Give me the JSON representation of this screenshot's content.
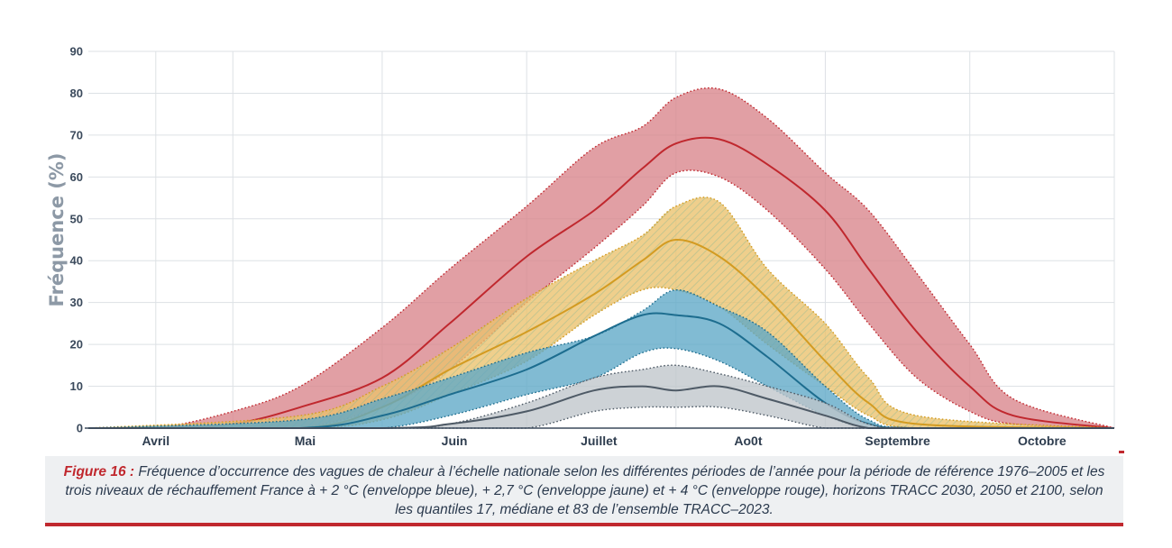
{
  "chart_data": {
    "type": "area",
    "ylabel": "Fréquence (%)",
    "ylim": [
      0,
      90
    ],
    "yticks": [
      0,
      10,
      20,
      30,
      40,
      50,
      60,
      70,
      80,
      90
    ],
    "x_axis": "day of year (April 1 to October 31)",
    "xlim": [
      "04-01",
      "10-31"
    ],
    "month_gridlines": [
      "04-15",
      "05-01",
      "06-01",
      "07-01",
      "08-01",
      "09-01",
      "10-01"
    ],
    "months": [
      {
        "label": "Avril",
        "center": "04-15"
      },
      {
        "label": "Mai",
        "center": "05-16"
      },
      {
        "label": "Juin",
        "center": "06-16"
      },
      {
        "label": "Juillet",
        "center": "07-16"
      },
      {
        "label": "Ao0t",
        "center": "08-16"
      },
      {
        "label": "Septembre",
        "center": "09-16"
      },
      {
        "label": "Octobre",
        "center": "10-16"
      }
    ],
    "grid": true,
    "series": [
      {
        "color": "#bfc5cb",
        "line_color": "#4e5a66",
        "fill_pattern": "solid",
        "x": [
          "04-01",
          "06-01",
          "06-15",
          "07-01",
          "07-15",
          "07-25",
          "08-01",
          "08-10",
          "08-20",
          "09-01",
          "09-10",
          "09-20",
          "10-31"
        ],
        "q17": [
          0,
          0,
          0,
          0,
          4,
          5,
          5,
          5,
          3,
          0,
          0,
          0,
          0
        ],
        "median": [
          0,
          0,
          1,
          4,
          9,
          10,
          9,
          10,
          7,
          3,
          0,
          0,
          0
        ],
        "q83": [
          0,
          0,
          1,
          6,
          12,
          14,
          15,
          13,
          10,
          6,
          1,
          0,
          0
        ]
      },
      {
        "color": "#5ea8c6",
        "line_color": "#1d6d8f",
        "fill_pattern": "solid",
        "x": [
          "04-01",
          "05-15",
          "06-01",
          "06-15",
          "07-01",
          "07-15",
          "07-25",
          "08-01",
          "08-10",
          "08-20",
          "09-01",
          "09-10",
          "09-20",
          "10-31"
        ],
        "q17": [
          0,
          0,
          0,
          3,
          8,
          12,
          18,
          19,
          16,
          10,
          3,
          0,
          0,
          0
        ],
        "median": [
          0,
          0,
          3,
          8,
          14,
          22,
          27,
          27,
          25,
          17,
          6,
          1,
          0,
          0
        ],
        "q83": [
          0,
          2,
          7,
          12,
          18,
          22,
          28,
          33,
          29,
          23,
          10,
          2,
          0,
          0
        ]
      },
      {
        "color": "#ebc26b",
        "line_color": "#d39b21",
        "fill_pattern": "solid",
        "x": [
          "04-01",
          "05-15",
          "06-01",
          "06-15",
          "07-01",
          "07-15",
          "07-25",
          "08-01",
          "08-10",
          "08-20",
          "09-01",
          "09-10",
          "09-20",
          "10-31"
        ],
        "q17": [
          0,
          0,
          2,
          8,
          16,
          27,
          33,
          33,
          29,
          20,
          10,
          3,
          0,
          0
        ],
        "median": [
          0,
          0,
          5,
          14,
          23,
          32,
          40,
          45,
          41,
          31,
          16,
          6,
          1,
          0
        ],
        "q83": [
          0,
          3,
          10,
          19,
          31,
          40,
          46,
          53,
          54,
          38,
          25,
          12,
          3,
          0
        ]
      },
      {
        "color": "#d9848a",
        "line_color": "#c0282e",
        "fill_pattern": "solid",
        "x": [
          "04-01",
          "04-15",
          "05-01",
          "05-15",
          "06-01",
          "06-15",
          "07-01",
          "07-15",
          "07-25",
          "08-01",
          "08-10",
          "08-20",
          "09-01",
          "09-10",
          "09-20",
          "10-01",
          "10-10",
          "10-31"
        ],
        "q17": [
          0,
          0,
          0,
          0,
          5,
          14,
          30,
          43,
          53,
          61,
          60,
          52,
          38,
          25,
          12,
          4,
          1,
          0
        ],
        "median": [
          0,
          0,
          1,
          5,
          12,
          25,
          41,
          52,
          62,
          68,
          69,
          63,
          52,
          38,
          23,
          10,
          3,
          0
        ],
        "q83": [
          0,
          0,
          4,
          10,
          24,
          38,
          53,
          67,
          72,
          79,
          81,
          74,
          61,
          52,
          37,
          20,
          7,
          0
        ]
      }
    ]
  },
  "caption": {
    "label": "Figure 16 :",
    "text": " Fréquence d’occurrence des vagues de chaleur à l’échelle nationale selon les différentes périodes de l’année pour la période de référence 1976–2005 et les trois niveaux de réchauffement France à + 2 °C (enveloppe bleue), + 2,7 °C (enveloppe jaune) et + 4 °C (enveloppe rouge), horizons TRACC 2030, 2050 et 2100, selon les quantiles 17, médiane et 83 de l’ensemble TRACC–2023."
  }
}
